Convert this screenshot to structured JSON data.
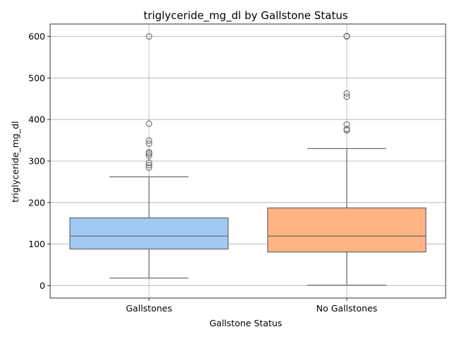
{
  "chart_data": {
    "type": "box",
    "title": "triglyceride_mg_dl by Gallstone Status",
    "xlabel": "Gallstone Status",
    "ylabel": "triglyceride_mg_dl",
    "ylim": [
      -30,
      630
    ],
    "yticks": [
      0,
      100,
      200,
      300,
      400,
      500,
      600
    ],
    "grid": true,
    "categories": [
      "Gallstones",
      "No Gallstones"
    ],
    "series": [
      {
        "category": "Gallstones",
        "color": "#a1c9f4",
        "whisker_low": 18,
        "q1": 88,
        "median": 119,
        "q3": 163,
        "whisker_high": 262,
        "outliers": [
          284,
          290,
          296,
          313,
          318,
          321,
          342,
          349,
          390,
          600
        ]
      },
      {
        "category": "No Gallstones",
        "color": "#ffb482",
        "whisker_low": 1,
        "q1": 81,
        "median": 119,
        "q3": 187,
        "whisker_high": 330,
        "outliers": [
          374,
          377,
          388,
          455,
          463,
          600,
          601
        ]
      }
    ]
  }
}
